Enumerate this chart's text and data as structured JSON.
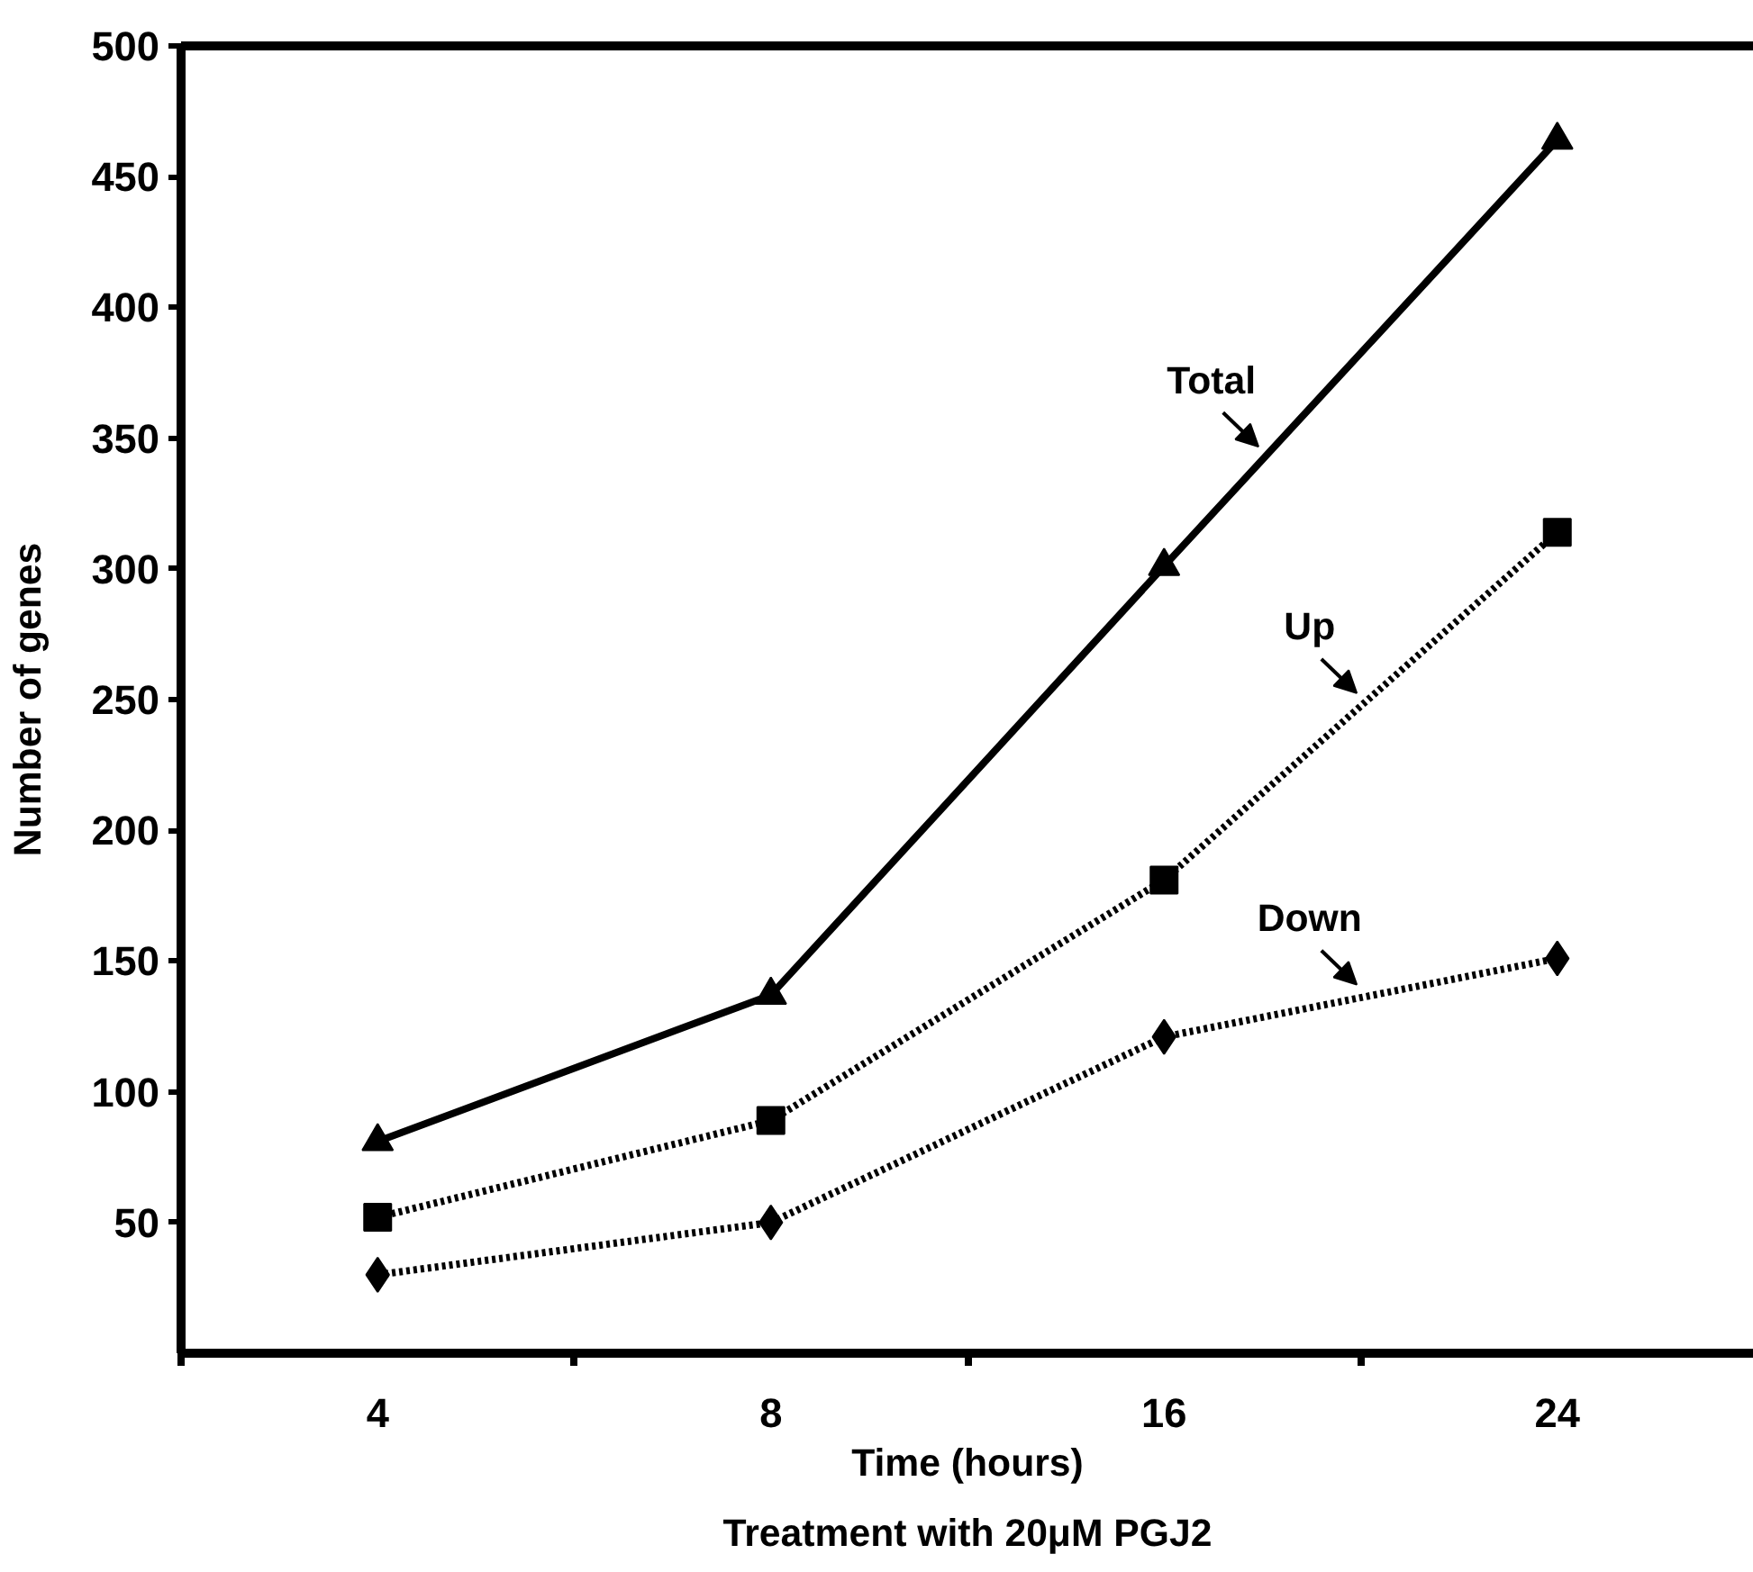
{
  "chart_data": {
    "type": "line",
    "xlabel": "Time (hours)",
    "ylabel": "Number of genes",
    "categories": [
      "4",
      "8",
      "16",
      "24"
    ],
    "series": [
      {
        "name": "Total",
        "color": "#000000",
        "values": [
          81,
          137,
          301,
          464
        ],
        "marker": "triangle",
        "line_style": "solid"
      },
      {
        "name": "Up",
        "color": "#000000",
        "values": [
          52,
          89,
          181,
          314
        ],
        "marker": "square",
        "line_style": "dotted"
      },
      {
        "name": "Down",
        "color": "#000000",
        "values": [
          30,
          50,
          121,
          151
        ],
        "marker": "diamond",
        "line_style": "dotted"
      }
    ],
    "ylim": [
      0,
      500
    ],
    "yticks": [
      50,
      100,
      150,
      200,
      250,
      300,
      350,
      400,
      450,
      500
    ],
    "grid": false,
    "annotations": [
      "Treatment with 20μM PGJ2"
    ]
  }
}
